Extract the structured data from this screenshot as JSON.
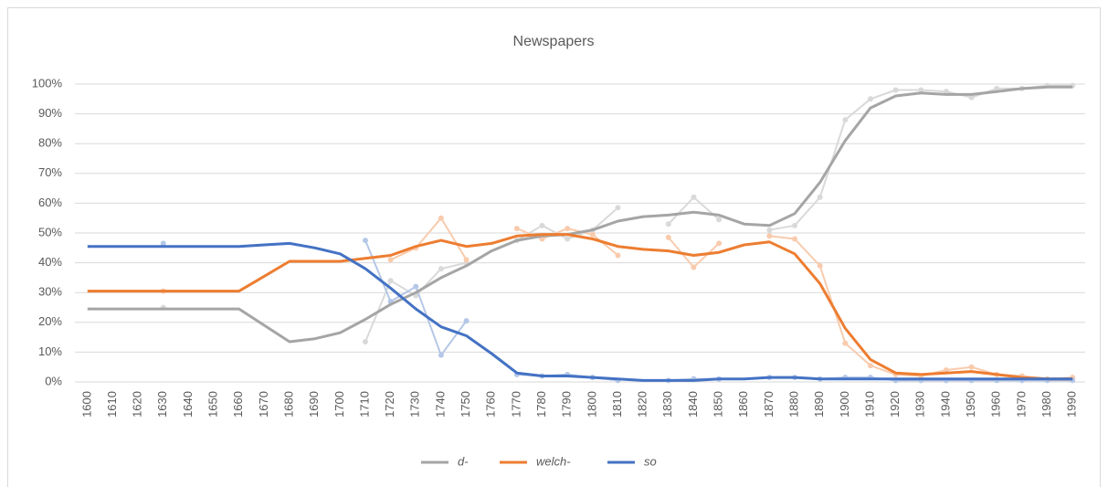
{
  "chart_data": {
    "type": "line",
    "title": "Newspapers",
    "categories": [
      "1600",
      "1610",
      "1620",
      "1630",
      "1640",
      "1650",
      "1660",
      "1670",
      "1680",
      "1690",
      "1700",
      "1710",
      "1720",
      "1730",
      "1740",
      "1750",
      "1760",
      "1770",
      "1780",
      "1790",
      "1800",
      "1810",
      "1820",
      "1830",
      "1840",
      "1850",
      "1860",
      "1870",
      "1880",
      "1890",
      "1900",
      "1910",
      "1920",
      "1930",
      "1940",
      "1950",
      "1960",
      "1970",
      "1980",
      "1990"
    ],
    "series": [
      {
        "name": "d-",
        "color": "#a5a5a5",
        "values": [
          24.5,
          24.5,
          24.5,
          24.5,
          24.5,
          24.5,
          24.5,
          19,
          13.5,
          14.5,
          16.5,
          21,
          26,
          30,
          35,
          39,
          44,
          47.5,
          49,
          49.5,
          51,
          54,
          55.5,
          56,
          57,
          56,
          53,
          52.5,
          56.5,
          67,
          81,
          92,
          96,
          97,
          96.5,
          96.5,
          97.5,
          98.5,
          99,
          99
        ]
      },
      {
        "name": "welch-",
        "color": "#ed7d31",
        "values": [
          30.5,
          30.5,
          30.5,
          30.5,
          30.5,
          30.5,
          30.5,
          35.5,
          40.5,
          40.5,
          40.5,
          41.5,
          42.5,
          45.5,
          47.5,
          45.5,
          46.5,
          49,
          49.5,
          49.5,
          48,
          45.5,
          44.5,
          44,
          42.5,
          43.5,
          46,
          47,
          43,
          33,
          18,
          7.5,
          3,
          2.5,
          3,
          3.5,
          2.5,
          1.5,
          1,
          1
        ]
      },
      {
        "name": "so",
        "color": "#4472c4",
        "values": [
          45.5,
          45.5,
          45.5,
          45.5,
          45.5,
          45.5,
          45.5,
          46,
          46.5,
          45,
          43,
          38,
          31.5,
          24.5,
          18.5,
          15.5,
          9.5,
          3,
          2,
          2,
          1.5,
          1,
          0.5,
          0.5,
          0.5,
          1,
          1,
          1.5,
          1.5,
          1,
          1,
          1,
          1,
          1,
          1,
          1,
          1,
          1,
          1,
          1
        ]
      }
    ],
    "raw_series": [
      {
        "color": "#d9d9d9",
        "values": [
          null,
          null,
          null,
          25,
          null,
          null,
          null,
          null,
          null,
          null,
          null,
          13.5,
          34,
          29,
          38,
          40,
          null,
          47.5,
          52.5,
          48,
          51,
          58.5,
          null,
          53,
          62,
          54.5,
          null,
          51,
          52.5,
          62,
          88,
          95,
          98,
          98,
          97.5,
          95.5,
          98.5,
          98.5,
          99.5,
          99.5
        ]
      },
      {
        "color": "#f8cbad",
        "values": [
          null,
          null,
          null,
          30.5,
          null,
          null,
          null,
          null,
          null,
          null,
          null,
          null,
          41,
          45,
          55,
          41,
          null,
          51.5,
          48,
          51.5,
          49.5,
          42.5,
          null,
          48.5,
          38.5,
          46.5,
          null,
          49,
          48,
          39,
          13,
          5.5,
          2.5,
          2,
          4,
          5,
          2.5,
          2,
          1,
          1.5
        ]
      },
      {
        "color": "#b4c7e7",
        "values": [
          null,
          null,
          null,
          46.5,
          null,
          null,
          null,
          null,
          null,
          null,
          null,
          47.5,
          27,
          32,
          9,
          20.5,
          null,
          2.5,
          2,
          2.5,
          1.5,
          0.5,
          null,
          0.5,
          1,
          1,
          null,
          1.5,
          1.5,
          1,
          1.5,
          1.5,
          0.5,
          0.5,
          0.5,
          0.5,
          0.5,
          0.5,
          0.5,
          0.5
        ]
      }
    ],
    "ylim": [
      0,
      100
    ],
    "yticks": [
      {
        "value": 0,
        "label": "0%"
      },
      {
        "value": 10,
        "label": "10%"
      },
      {
        "value": 20,
        "label": "20%"
      },
      {
        "value": 30,
        "label": "30%"
      },
      {
        "value": 40,
        "label": "40%"
      },
      {
        "value": 50,
        "label": "50%"
      },
      {
        "value": 60,
        "label": "60%"
      },
      {
        "value": 70,
        "label": "70%"
      },
      {
        "value": 80,
        "label": "80%"
      },
      {
        "value": 90,
        "label": "90%"
      },
      {
        "value": 100,
        "label": "100%"
      }
    ],
    "grid": true,
    "legend": "bottom"
  }
}
